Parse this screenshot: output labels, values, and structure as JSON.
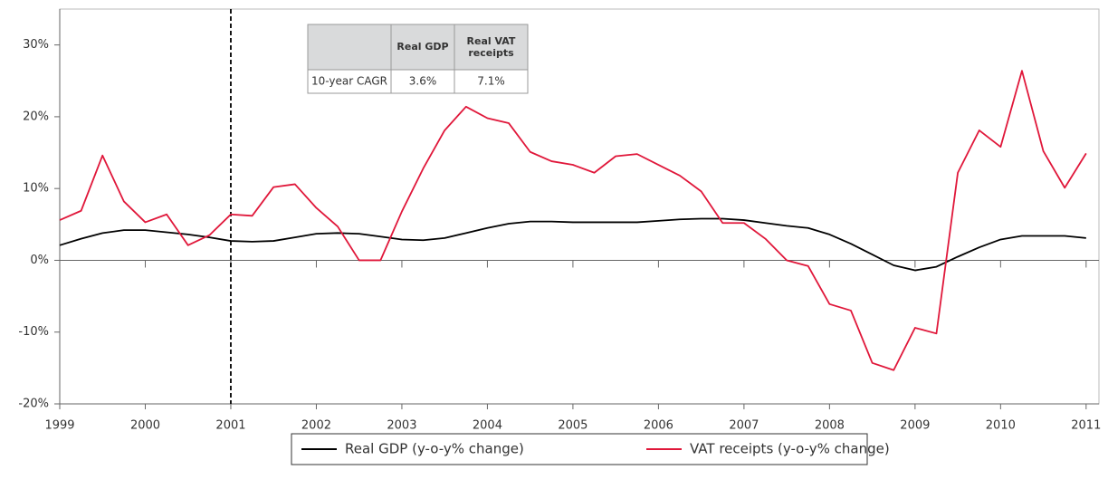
{
  "chart_data": {
    "type": "line",
    "x": [
      1999,
      1999.25,
      1999.5,
      1999.75,
      2000,
      2000.25,
      2000.5,
      2000.75,
      2001,
      2001.25,
      2001.5,
      2001.75,
      2002,
      2002.25,
      2002.5,
      2002.75,
      2003,
      2003.25,
      2003.5,
      2003.75,
      2004,
      2004.25,
      2004.5,
      2004.75,
      2005,
      2005.25,
      2005.5,
      2005.75,
      2006,
      2006.25,
      2006.5,
      2006.75,
      2007,
      2007.25,
      2007.5,
      2007.75,
      2008,
      2008.25,
      2008.5,
      2008.75,
      2009,
      2009.25,
      2009.5,
      2009.75,
      2010,
      2010.25,
      2010.5,
      2010.75,
      2011
    ],
    "series": [
      {
        "name": "Real GDP (y-o-y% change)",
        "color": "#000000",
        "values": [
          2.1,
          3.0,
          3.8,
          4.2,
          4.2,
          3.9,
          3.6,
          3.2,
          2.7,
          2.6,
          2.7,
          3.2,
          3.7,
          3.8,
          3.7,
          3.3,
          2.9,
          2.8,
          3.1,
          3.8,
          4.5,
          5.1,
          5.4,
          5.4,
          5.3,
          5.3,
          5.3,
          5.3,
          5.5,
          5.7,
          5.8,
          5.8,
          5.6,
          5.2,
          4.8,
          4.5,
          3.6,
          2.3,
          0.8,
          -0.7,
          -1.4,
          -0.9,
          0.5,
          1.8,
          2.9,
          3.4,
          3.4,
          3.4,
          3.1
        ]
      },
      {
        "name": "VAT receipts (y-o-y% change)",
        "color": "#e0173a",
        "values": [
          5.6,
          6.9,
          14.6,
          8.2,
          5.3,
          6.4,
          2.1,
          3.5,
          6.4,
          6.2,
          10.2,
          10.6,
          7.3,
          4.7,
          0,
          0,
          6.8,
          12.8,
          18.1,
          21.4,
          19.8,
          19.1,
          15.1,
          13.8,
          13.3,
          12.2,
          14.5,
          14.8,
          13.3,
          11.8,
          9.6,
          5.2,
          5.2,
          3.0,
          0,
          -0.8,
          -6.1,
          -7.0,
          -14.3,
          -15.3,
          -9.4,
          -10.2,
          12.2,
          18.1,
          15.8,
          26.4,
          15.2,
          10.1,
          14.9
        ]
      }
    ],
    "xlim": [
      1999,
      2011.15
    ],
    "xticks": [
      1999,
      2000,
      2001,
      2002,
      2003,
      2004,
      2005,
      2006,
      2007,
      2008,
      2009,
      2010,
      2011
    ],
    "ylim": [
      -20,
      35
    ],
    "yticks": [
      {
        "value": -20,
        "label": "-20%"
      },
      {
        "value": -10,
        "label": "-10%"
      },
      {
        "value": 0,
        "label": "0%"
      },
      {
        "value": 10,
        "label": "10%"
      },
      {
        "value": 20,
        "label": "20%"
      },
      {
        "value": 30,
        "label": "30%"
      }
    ],
    "vline": 2001,
    "table": {
      "columns": [
        "Real GDP",
        "Real VAT receipts"
      ],
      "rows": [
        [
          "10-year CAGR",
          "3.6%",
          "7.1%"
        ]
      ]
    }
  }
}
